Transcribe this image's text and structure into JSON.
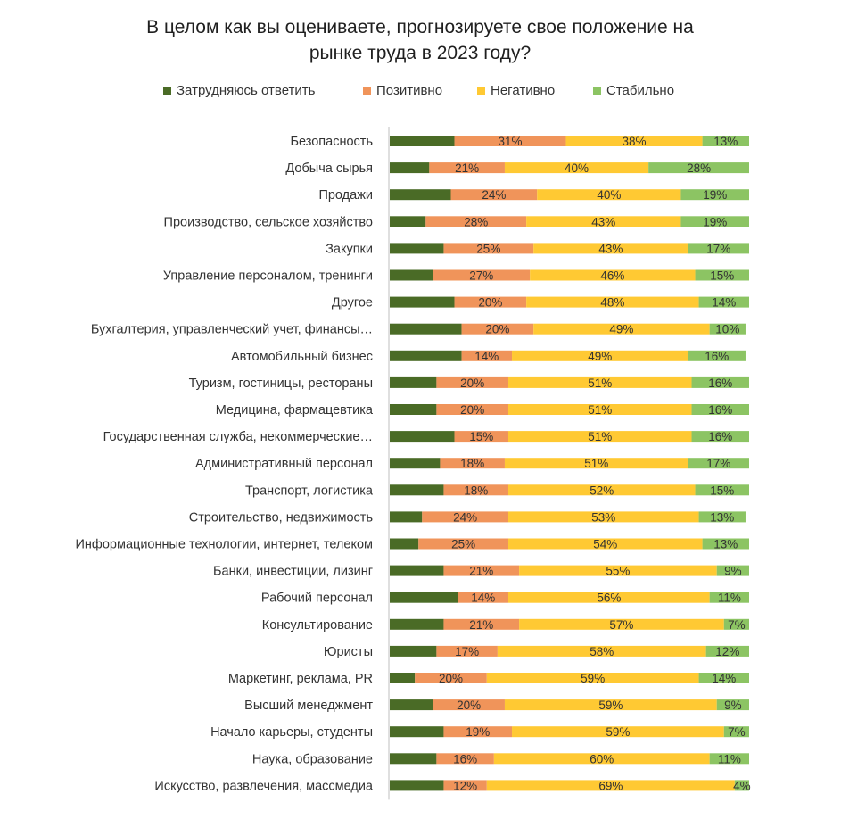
{
  "chart_data": {
    "type": "bar",
    "orientation": "horizontal",
    "stacked": true,
    "title": "В целом как вы оцениваете, прогнозируете свое положение на рынке труда в 2023 году?",
    "legend_position": "top",
    "grid": false,
    "categories": [
      "Безопасность",
      "Добыча сырья",
      "Продажи",
      "Производство, сельское хозяйство",
      "Закупки",
      "Управление персоналом, тренинги",
      "Другое",
      "Бухгалтерия, управленческий учет, финансы…",
      "Автомобильный бизнес",
      "Туризм, гостиницы, рестораны",
      "Медицина, фармацевтика",
      "Государственная служба, некоммерческие…",
      "Административный персонал",
      "Транспорт, логистика",
      "Строительство, недвижимость",
      "Информационные технологии, интернет, телеком",
      "Банки, инвестиции, лизинг",
      "Рабочий персонал",
      "Консультирование",
      "Юристы",
      "Маркетинг, реклама, PR",
      "Высший менеджмент",
      "Начало карьеры, студенты",
      "Наука, образование",
      "Искусство, развлечения, массмедиа"
    ],
    "series": [
      {
        "name": "Затрудняюсь ответить",
        "color": "#4a6b26",
        "show_labels": false,
        "values": [
          18,
          11,
          17,
          10,
          15,
          12,
          18,
          20,
          20,
          13,
          13,
          18,
          14,
          15,
          9,
          8,
          15,
          19,
          15,
          13,
          7,
          12,
          15,
          13,
          15
        ]
      },
      {
        "name": "Позитивно",
        "color": "#f0945a",
        "show_labels": true,
        "values": [
          31,
          21,
          24,
          28,
          25,
          27,
          20,
          20,
          14,
          20,
          20,
          15,
          18,
          18,
          24,
          25,
          21,
          14,
          21,
          17,
          20,
          20,
          19,
          16,
          12
        ]
      },
      {
        "name": "Негативно",
        "color": "#ffc933",
        "show_labels": true,
        "values": [
          38,
          40,
          40,
          43,
          43,
          46,
          48,
          49,
          49,
          51,
          51,
          51,
          51,
          52,
          53,
          54,
          55,
          56,
          57,
          58,
          59,
          59,
          59,
          60,
          69
        ]
      },
      {
        "name": "Стабильно",
        "color": "#8cc463",
        "show_labels": true,
        "values": [
          13,
          28,
          19,
          19,
          17,
          15,
          14,
          10,
          16,
          16,
          16,
          16,
          17,
          15,
          13,
          13,
          9,
          11,
          7,
          12,
          14,
          9,
          7,
          11,
          4
        ]
      }
    ],
    "value_suffix": "%",
    "xlim": [
      0,
      100
    ]
  }
}
